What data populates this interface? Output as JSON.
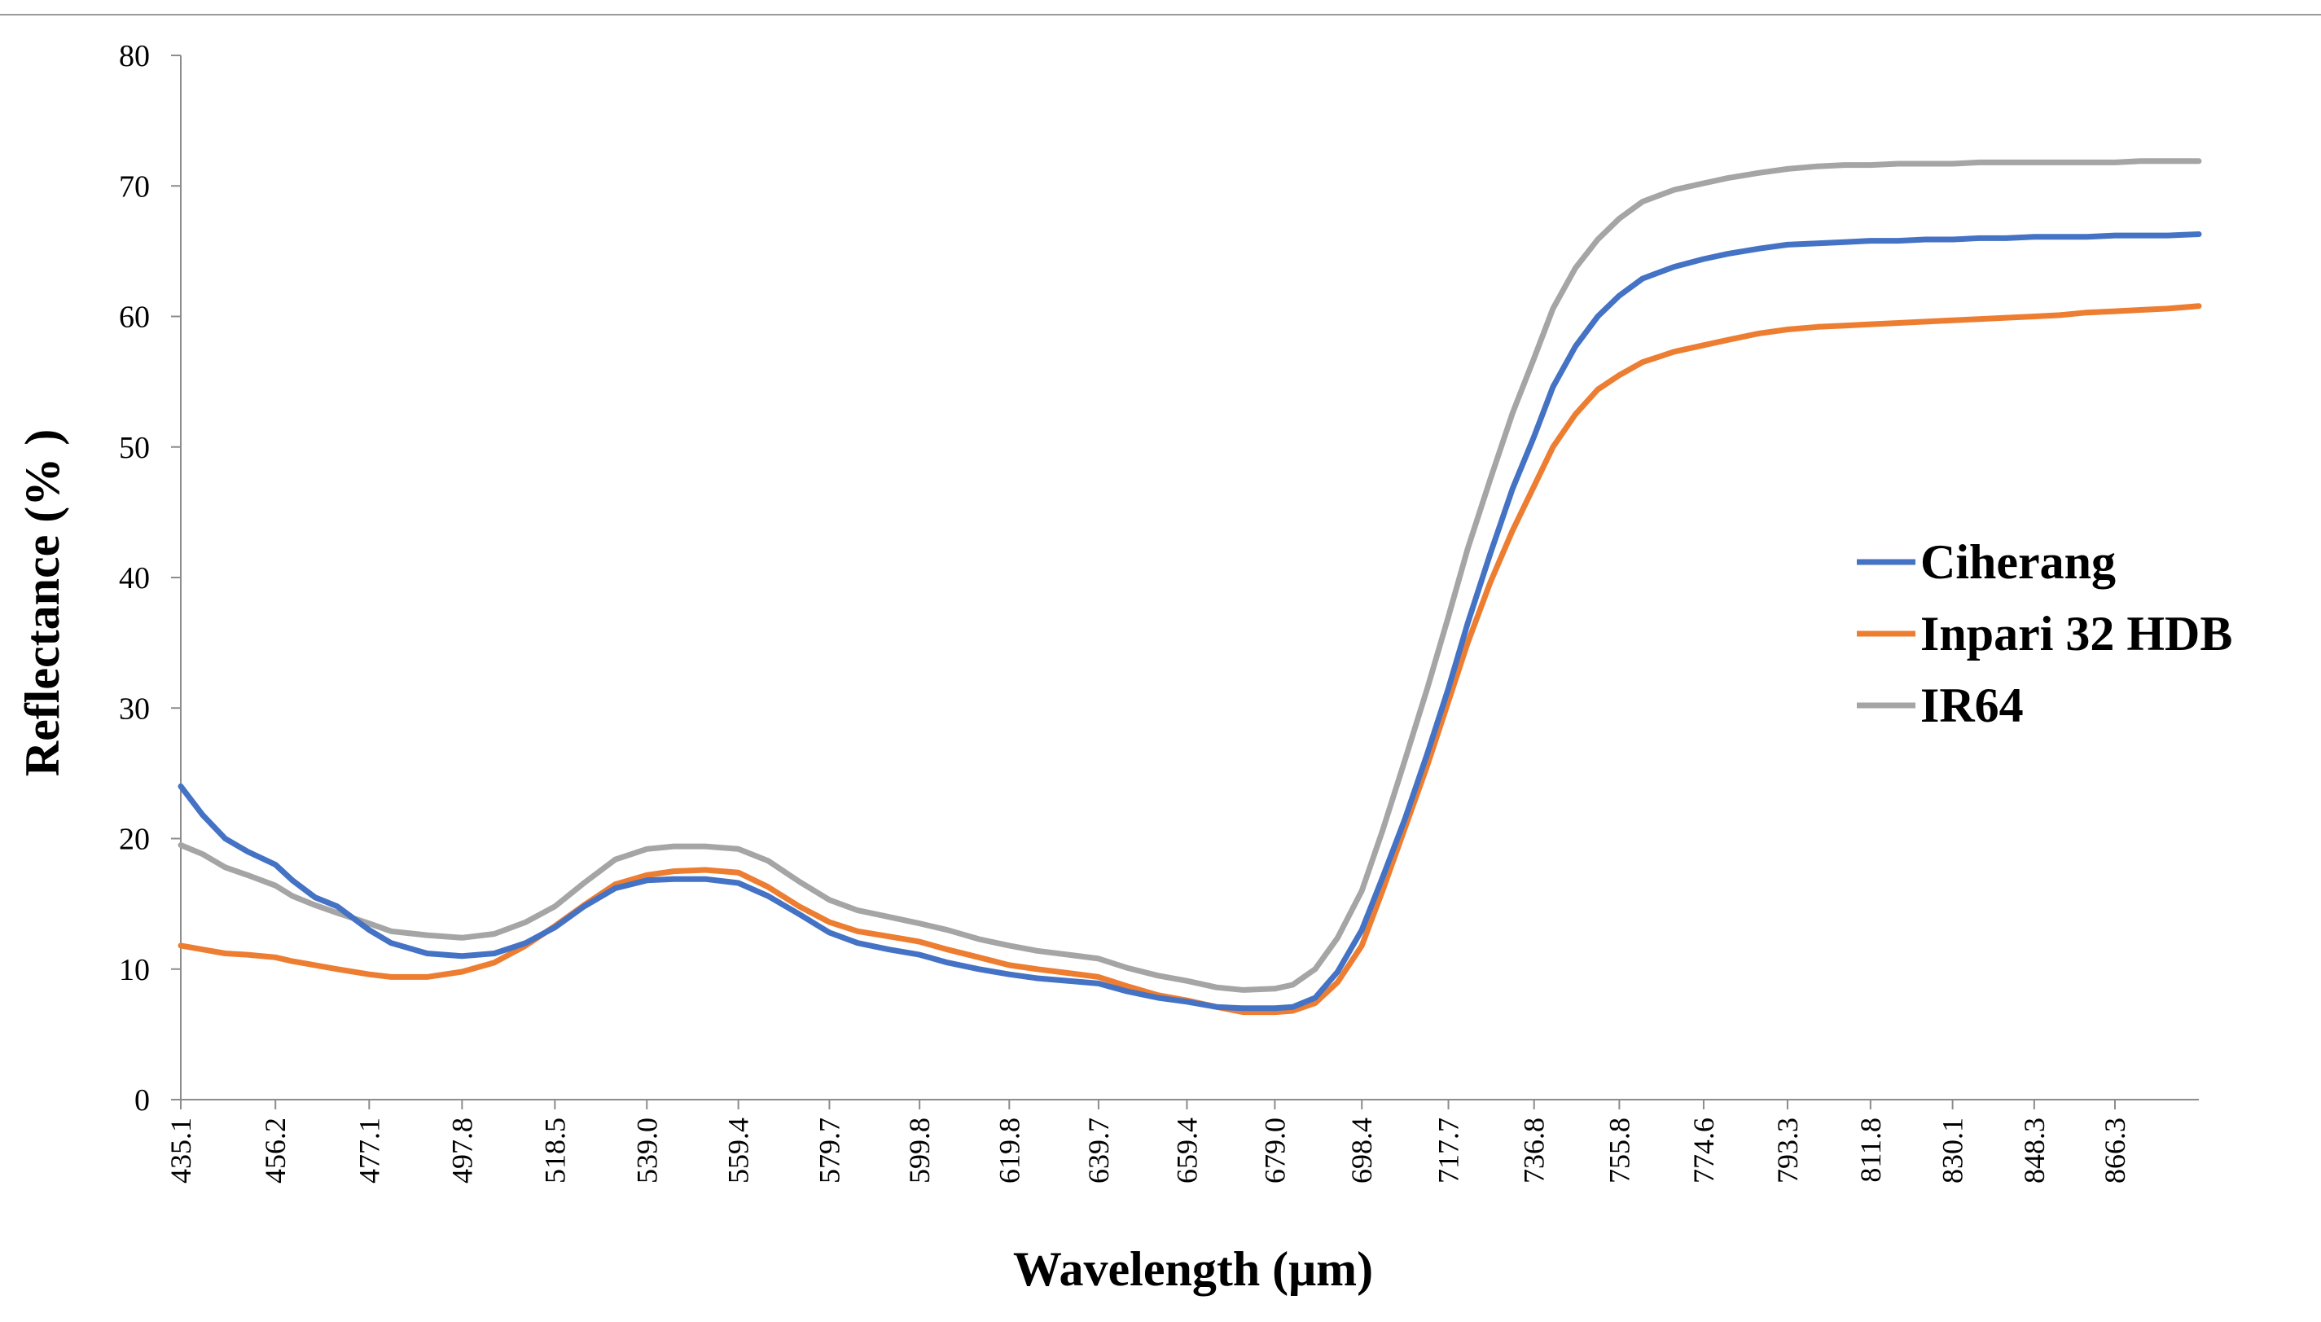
{
  "chart_data": {
    "type": "line",
    "title": "",
    "xlabel": "Wavelength (μm)",
    "ylabel": "Reflectance (% )",
    "ylim": [
      0,
      80
    ],
    "yticks": [
      0,
      10,
      20,
      30,
      40,
      50,
      60,
      70,
      80
    ],
    "xlim": [
      435.1,
      885.0
    ],
    "xticks": [
      "435.1",
      "456.2",
      "477.1",
      "497.8",
      "518.5",
      "539.0",
      "559.4",
      "579.7",
      "599.8",
      "619.8",
      "639.7",
      "659.4",
      "679.0",
      "698.4",
      "717.7",
      "736.8",
      "755.8",
      "774.6",
      "793.3",
      "811.8",
      "830.1",
      "848.3",
      "866.3"
    ],
    "grid": false,
    "legend_position": "right",
    "x": [
      435.1,
      440,
      445,
      450,
      456.2,
      460,
      465,
      470,
      477.1,
      482,
      490,
      497.8,
      505,
      512,
      518.5,
      525,
      532,
      539.0,
      545,
      552,
      559.4,
      566,
      573,
      579.7,
      586,
      593,
      599.8,
      606,
      613,
      619.8,
      626,
      633,
      639.7,
      646,
      653,
      659.4,
      666,
      672,
      679.0,
      683,
      688,
      693,
      698.4,
      703,
      708,
      713,
      717.7,
      722,
      727,
      732,
      736.8,
      741,
      746,
      751,
      755.8,
      761,
      768,
      774.6,
      780,
      787,
      793.3,
      800,
      806,
      811.8,
      818,
      824,
      830.1,
      836,
      842,
      848.3,
      854,
      860,
      866.3,
      872,
      878,
      885.0
    ],
    "series": [
      {
        "name": "Ciherang",
        "color": "#4472C4",
        "values": [
          24.0,
          21.8,
          20.0,
          19.0,
          18.0,
          16.8,
          15.5,
          14.8,
          13.0,
          12.0,
          11.2,
          11.0,
          11.2,
          12.0,
          13.2,
          14.8,
          16.2,
          16.8,
          16.9,
          16.9,
          16.6,
          15.6,
          14.2,
          12.8,
          12.0,
          11.5,
          11.1,
          10.5,
          10.0,
          9.6,
          9.3,
          9.1,
          8.9,
          8.3,
          7.8,
          7.5,
          7.1,
          7.0,
          7.0,
          7.1,
          7.8,
          9.8,
          13.0,
          17.0,
          21.5,
          26.5,
          31.5,
          36.5,
          41.8,
          46.8,
          50.8,
          54.6,
          57.7,
          60.0,
          61.6,
          62.9,
          63.8,
          64.4,
          64.8,
          65.2,
          65.5,
          65.6,
          65.7,
          65.8,
          65.8,
          65.9,
          65.9,
          66.0,
          66.0,
          66.1,
          66.1,
          66.1,
          66.2,
          66.2,
          66.2,
          66.3
        ]
      },
      {
        "name": "Inpari 32 HDB",
        "color": "#ED7D31",
        "values": [
          11.8,
          11.5,
          11.2,
          11.1,
          10.9,
          10.6,
          10.3,
          10.0,
          9.6,
          9.4,
          9.4,
          9.8,
          10.5,
          11.8,
          13.3,
          14.9,
          16.5,
          17.2,
          17.5,
          17.6,
          17.4,
          16.3,
          14.8,
          13.6,
          12.9,
          12.5,
          12.1,
          11.5,
          10.9,
          10.3,
          10.0,
          9.7,
          9.4,
          8.7,
          8.0,
          7.6,
          7.1,
          6.7,
          6.7,
          6.8,
          7.4,
          9.0,
          11.8,
          16.0,
          20.8,
          25.6,
          30.5,
          35.0,
          39.6,
          43.6,
          47.0,
          50.0,
          52.5,
          54.4,
          55.5,
          56.5,
          57.3,
          57.8,
          58.2,
          58.7,
          59.0,
          59.2,
          59.3,
          59.4,
          59.5,
          59.6,
          59.7,
          59.8,
          59.9,
          60.0,
          60.1,
          60.3,
          60.4,
          60.5,
          60.6,
          60.8
        ]
      },
      {
        "name": "IR64",
        "color": "#A5A5A5",
        "values": [
          19.5,
          18.8,
          17.8,
          17.2,
          16.4,
          15.6,
          14.9,
          14.3,
          13.5,
          12.9,
          12.6,
          12.4,
          12.7,
          13.6,
          14.8,
          16.6,
          18.4,
          19.2,
          19.4,
          19.4,
          19.2,
          18.3,
          16.7,
          15.3,
          14.5,
          14.0,
          13.5,
          13.0,
          12.3,
          11.8,
          11.4,
          11.1,
          10.8,
          10.1,
          9.5,
          9.1,
          8.6,
          8.4,
          8.5,
          8.8,
          10.0,
          12.4,
          16.0,
          20.6,
          26.0,
          31.5,
          37.0,
          42.2,
          47.5,
          52.6,
          56.8,
          60.6,
          63.7,
          65.9,
          67.5,
          68.8,
          69.7,
          70.2,
          70.6,
          71.0,
          71.3,
          71.5,
          71.6,
          71.6,
          71.7,
          71.7,
          71.7,
          71.8,
          71.8,
          71.8,
          71.8,
          71.8,
          71.8,
          71.9,
          71.9,
          71.9
        ]
      }
    ]
  }
}
